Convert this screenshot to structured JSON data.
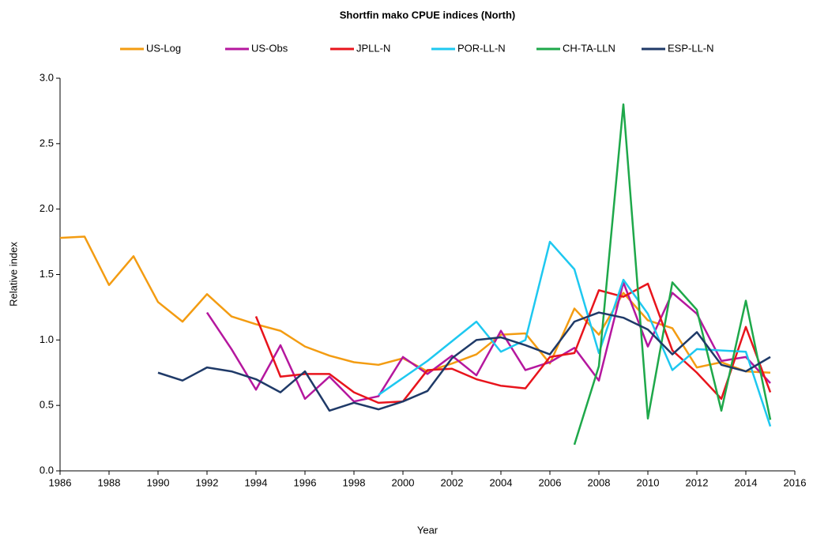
{
  "chart_data": {
    "type": "line",
    "title": "Shortfin mako CPUE indices (North)",
    "xlabel": "Year",
    "ylabel": "Relative index",
    "x": [
      1986,
      1987,
      1988,
      1989,
      1990,
      1991,
      1992,
      1993,
      1994,
      1995,
      1996,
      1997,
      1998,
      1999,
      2000,
      2001,
      2002,
      2003,
      2004,
      2005,
      2006,
      2007,
      2008,
      2009,
      2010,
      2011,
      2012,
      2013,
      2014,
      2015
    ],
    "series": [
      {
        "name": "US-Log",
        "color": "#f39c12",
        "values": [
          1.78,
          1.79,
          1.42,
          1.64,
          1.29,
          1.14,
          1.35,
          1.18,
          1.12,
          1.07,
          0.95,
          0.88,
          0.83,
          0.81,
          0.86,
          0.76,
          0.82,
          0.89,
          1.04,
          1.05,
          0.82,
          1.24,
          1.04,
          1.36,
          1.15,
          1.09,
          0.79,
          0.83,
          0.76,
          0.75
        ]
      },
      {
        "name": "US-Obs",
        "color": "#b5179e",
        "values": [
          null,
          null,
          null,
          null,
          null,
          null,
          1.21,
          0.93,
          0.62,
          0.96,
          0.55,
          0.72,
          0.53,
          0.57,
          0.87,
          0.74,
          0.88,
          0.73,
          1.07,
          0.77,
          0.83,
          0.94,
          0.69,
          1.44,
          0.95,
          1.36,
          1.2,
          0.84,
          0.87,
          0.67
        ]
      },
      {
        "name": "JPLL-N",
        "color": "#e8141c",
        "values": [
          null,
          null,
          null,
          null,
          null,
          null,
          null,
          null,
          1.18,
          0.72,
          0.74,
          0.74,
          0.6,
          0.52,
          0.53,
          0.77,
          0.78,
          0.7,
          0.65,
          0.63,
          0.87,
          0.9,
          1.38,
          1.33,
          1.43,
          0.92,
          0.75,
          0.55,
          1.1,
          0.6
        ]
      },
      {
        "name": "POR-LL-N",
        "color": "#1ec8f0",
        "values": [
          null,
          null,
          null,
          null,
          null,
          null,
          null,
          null,
          null,
          null,
          null,
          null,
          null,
          0.58,
          0.71,
          0.84,
          0.99,
          1.14,
          0.91,
          1.0,
          1.75,
          1.54,
          0.9,
          1.46,
          1.2,
          0.77,
          0.93,
          0.92,
          0.91,
          0.34
        ]
      },
      {
        "name": "CH-TA-LLN",
        "color": "#1ea84a",
        "values": [
          null,
          null,
          null,
          null,
          null,
          null,
          null,
          null,
          null,
          null,
          null,
          null,
          null,
          null,
          null,
          null,
          null,
          null,
          null,
          null,
          null,
          0.2,
          0.8,
          2.8,
          0.4,
          1.44,
          1.23,
          0.46,
          1.3,
          0.39
        ]
      },
      {
        "name": "ESP-LL-N",
        "color": "#1f3a68",
        "values": [
          null,
          null,
          null,
          null,
          0.75,
          0.69,
          0.79,
          0.76,
          0.7,
          0.6,
          0.76,
          0.46,
          0.52,
          0.47,
          0.53,
          0.61,
          0.86,
          1.0,
          1.02,
          0.96,
          0.89,
          1.14,
          1.21,
          1.17,
          1.08,
          0.89,
          1.06,
          0.81,
          0.76,
          0.87
        ]
      }
    ],
    "xlim": [
      1986,
      2016
    ],
    "xticks": [
      1986,
      1988,
      1990,
      1992,
      1994,
      1996,
      1998,
      2000,
      2002,
      2004,
      2006,
      2008,
      2010,
      2012,
      2014,
      2016
    ],
    "ylim": [
      0,
      3
    ],
    "yticks": [
      {
        "value": 0,
        "label": "0.0"
      },
      0.5,
      {
        "value": 1,
        "label": "1.0"
      },
      1.5,
      {
        "value": 2,
        "label": "2.0"
      },
      2.5,
      {
        "value": 3,
        "label": "3.0"
      }
    ],
    "legend": "top"
  }
}
